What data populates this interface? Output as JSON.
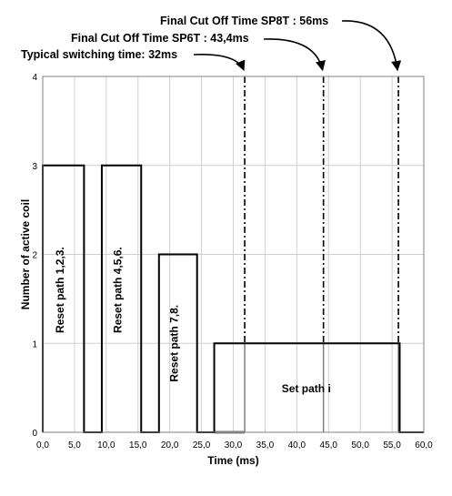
{
  "chart_data": {
    "type": "line",
    "xlabel": "Time (ms)",
    "ylabel": "Number of active coil",
    "xlim": [
      0,
      60
    ],
    "ylim": [
      0,
      4
    ],
    "x_ticks": [
      "0,0",
      "5,0",
      "10,0",
      "15,0",
      "20,0",
      "25,0",
      "30,0",
      "35,0",
      "40,0",
      "45,0",
      "50,0",
      "55,0",
      "60,0"
    ],
    "y_ticks": [
      "0",
      "1",
      "2",
      "3",
      "4"
    ],
    "grid": true,
    "series": [
      {
        "x": [
          0,
          0,
          6.5,
          6.5,
          9.3,
          9.3,
          15.5,
          15.5,
          18.3,
          18.3,
          24.3,
          24.3,
          27.0,
          27.0,
          56.2,
          56.2,
          60.0
        ],
        "y": [
          0,
          3,
          3,
          0,
          0,
          3,
          3,
          0,
          0,
          2,
          2,
          0,
          0,
          1,
          1,
          0,
          0
        ]
      }
    ],
    "segment_labels": [
      {
        "text": "Reset path 1,2,3.",
        "x": 3.3,
        "y": 1.6
      },
      {
        "text": "Reset path 4,5,6.",
        "x": 12.4,
        "y": 1.6
      },
      {
        "text": "Reset path 7,8.",
        "x": 21.3,
        "y": 1.0
      },
      {
        "text": "Set path i",
        "x": 41.5,
        "y": 0.45
      }
    ],
    "annotations": [
      {
        "text": "Final Cut Off Time SP8T : 56ms",
        "x": 56.0
      },
      {
        "text": "Final Cut Off Time SP6T : 43,4ms",
        "x": 44.2
      },
      {
        "text": "Typical switching time: 32ms",
        "x": 31.8
      }
    ],
    "colors": {
      "line": "#000000",
      "grid": "#d0d0d0",
      "marker": "#808080"
    }
  }
}
